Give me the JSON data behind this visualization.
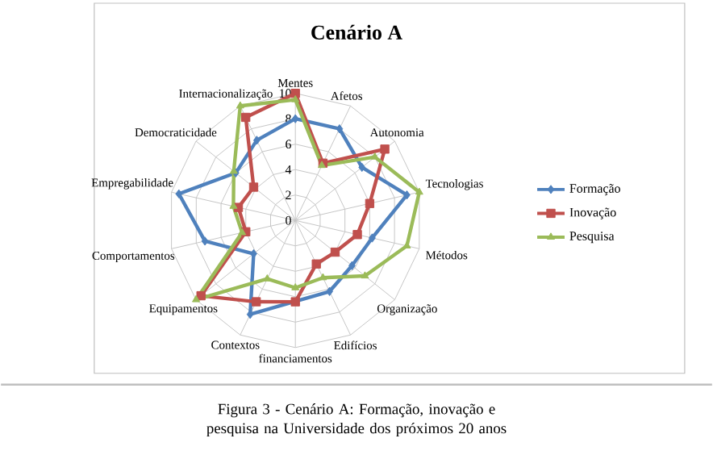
{
  "chart_data": {
    "type": "radar",
    "title": "Cenário A",
    "categories": [
      "Mentes",
      "Afetos",
      "Autonomia",
      "Tecnologias",
      "Métodos",
      "Organização",
      "Edifícios",
      "financiamentos",
      "Contextos",
      "Equipamentos",
      "Comportamentos",
      "Empregabilidade",
      "Democraticidade",
      "Internacionalização"
    ],
    "series": [
      {
        "name": "Formação",
        "color": "#4f81bd",
        "marker": "diamond",
        "values": [
          8,
          8,
          6.7,
          9,
          6.2,
          5.7,
          6.2,
          null,
          8.2,
          4.2,
          7.3,
          9.4,
          6,
          7
        ]
      },
      {
        "name": "Inovação",
        "color": "#c0504d",
        "marker": "square",
        "values": [
          10,
          5,
          9,
          6,
          5,
          4,
          3.8,
          6.4,
          7.1,
          9.5,
          4,
          4.6,
          4.2,
          9
        ]
      },
      {
        "name": "Pesquisa",
        "color": "#9bbb59",
        "marker": "triangle",
        "values": [
          9.5,
          4.8,
          8,
          10,
          9,
          7,
          5,
          5.3,
          5.1,
          10,
          4.3,
          5,
          6.2,
          10
        ]
      }
    ],
    "ylim": [
      0,
      10
    ],
    "yticks": [
      0,
      2,
      4,
      6,
      8,
      10
    ],
    "grid": true,
    "legend": "right",
    "annotations": [
      "Figura 3 - Cenário A: Formação, inovação e pesquisa na Universidade dos próximos 20 anos"
    ]
  }
}
